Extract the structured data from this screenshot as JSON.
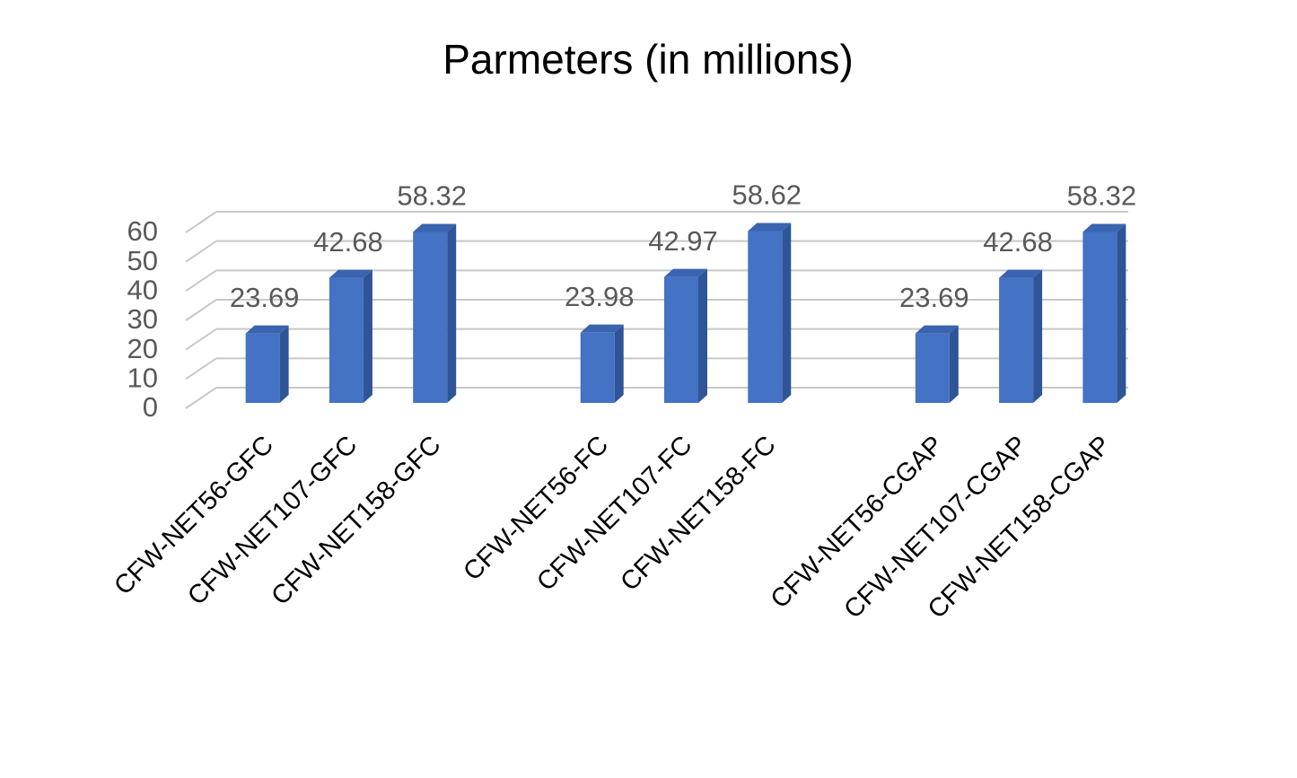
{
  "chart_data": {
    "type": "bar3d",
    "title": "Parmeters (in millions)",
    "categories": [
      "CFW-NET56-GFC",
      "CFW-NET107-GFC",
      "CFW-NET158-GFC",
      null,
      "CFW-NET56-FC",
      "CFW-NET107-FC",
      "CFW-NET158-FC",
      null,
      "CFW-NET56-CGAP",
      "CFW-NET107-CGAP",
      "CFW-NET158-CGAP"
    ],
    "values": [
      23.69,
      42.68,
      58.32,
      null,
      23.98,
      42.97,
      58.62,
      null,
      23.69,
      42.68,
      58.32
    ],
    "color": "#4472c4",
    "ylim": [
      0,
      60
    ],
    "yticks": [
      0,
      10,
      20,
      30,
      40,
      50,
      60
    ],
    "grid": true
  }
}
